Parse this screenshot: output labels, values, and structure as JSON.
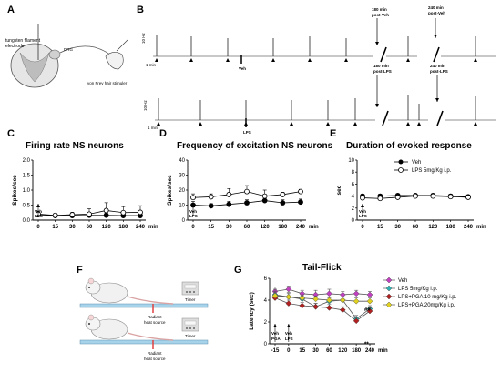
{
  "panels": {
    "A": {
      "letter": "A",
      "electrode_label_1": "tungsten filament",
      "electrode_label_2": "electrode",
      "drg": "DRG",
      "stimulator": "von Frey hair stimuler"
    },
    "B": {
      "letter": "B",
      "veh_label": "Veh",
      "lps_label": "LPS",
      "scale_time": "1 min",
      "scale_amp": "10 Hz",
      "ann_veh_180_1": "180 min",
      "ann_veh_180_2": "post-Veh",
      "ann_veh_240_1": "240 min",
      "ann_veh_240_2": "post-Veh",
      "ann_lps_180_1": "180 min",
      "ann_lps_180_2": "post-LPS",
      "ann_lps_240_1": "240 min",
      "ann_lps_240_2": "post-LPS"
    },
    "C": {
      "letter": "C",
      "title": "Firing rate NS neurons",
      "ylabel": "Spikes/sec",
      "arrow_1": "Veh",
      "arrow_2": "LPS"
    },
    "D": {
      "letter": "D",
      "title": "Frequency of excitation NS neurons",
      "ylabel": "Spikes/sec",
      "arrow_1": "Veh",
      "arrow_2": "LPS"
    },
    "E": {
      "letter": "E",
      "title": "Duration of evoked response",
      "ylabel": "sec",
      "arrow_1": "Veh",
      "arrow_2": "LPS",
      "legend": [
        "Veh",
        "LPS 5mg/Kg i.p."
      ]
    },
    "F": {
      "letter": "F",
      "source": [
        "Radiant",
        "heat source"
      ],
      "timer": "Timer"
    },
    "G": {
      "letter": "G",
      "title": "Tail-Flick",
      "ylabel": "Latency (sec)",
      "arrow_1": [
        "Veh",
        "PGA"
      ],
      "arrow_2": [
        "Veh",
        "LPS"
      ],
      "sig_1": "##",
      "sig_2": "**",
      "legend": [
        "Veh",
        "LPS 5mg/Kg i.p.",
        "LPS+PGA 10 mg/Kg i.p.",
        "LPS+PGA 20mg/Kg i.p."
      ]
    }
  },
  "chart_data": [
    {
      "id": "C",
      "type": "line",
      "title": "Firing rate NS neurons",
      "ylabel": "Spikes/sec",
      "xlabel": "min",
      "categories": [
        "0",
        "15",
        "30",
        "60",
        "120",
        "180",
        "240"
      ],
      "x_unit": "min",
      "ylim": [
        0,
        2
      ],
      "yticks": [
        0,
        0.5,
        1.0,
        1.5,
        2.0
      ],
      "series": [
        {
          "name": "Veh",
          "marker": "filled",
          "values": [
            0.18,
            0.15,
            0.15,
            0.16,
            0.16,
            0.15,
            0.15
          ],
          "errors": [
            0.08,
            0.06,
            0.05,
            0.1,
            0.08,
            0.12,
            0.1
          ]
        },
        {
          "name": "LPS 5mg/Kg i.p.",
          "marker": "open",
          "values": [
            0.2,
            0.16,
            0.18,
            0.2,
            0.32,
            0.25,
            0.26
          ],
          "errors": [
            0.1,
            0.06,
            0.08,
            0.18,
            0.26,
            0.2,
            0.22
          ]
        }
      ]
    },
    {
      "id": "D",
      "type": "line",
      "title": "Frequency of excitation NS neurons",
      "ylabel": "Spikes/sec",
      "xlabel": "min",
      "categories": [
        "0",
        "15",
        "30",
        "60",
        "120",
        "180",
        "240"
      ],
      "x_unit": "min",
      "ylim": [
        0,
        40
      ],
      "yticks": [
        0,
        10,
        20,
        30,
        40
      ],
      "series": [
        {
          "name": "Veh",
          "marker": "filled",
          "values": [
            10,
            9.5,
            10.5,
            11.5,
            13,
            11.5,
            12
          ],
          "errors": [
            2.5,
            1.5,
            2,
            2,
            3,
            2,
            2
          ]
        },
        {
          "name": "LPS 5mg/Kg i.p.",
          "marker": "open",
          "values": [
            15,
            15.5,
            17,
            19,
            16,
            17,
            19
          ],
          "errors": [
            2.5,
            2,
            4,
            4,
            4,
            1.5,
            1.5
          ]
        }
      ]
    },
    {
      "id": "E",
      "type": "line",
      "title": "Duration of evoked response",
      "ylabel": "sec",
      "xlabel": "min",
      "categories": [
        "0",
        "15",
        "30",
        "60",
        "120",
        "180",
        "240"
      ],
      "x_unit": "min",
      "ylim": [
        0,
        10
      ],
      "yticks": [
        0,
        2,
        4,
        6,
        8,
        10
      ],
      "legend_position": "top-right",
      "series": [
        {
          "name": "Veh",
          "marker": "filled",
          "values": [
            4,
            4,
            4.1,
            4.1,
            4.1,
            4.0,
            3.9
          ],
          "errors": [
            0.3,
            0.3,
            0.3,
            0.3,
            0.3,
            0.3,
            0.3
          ]
        },
        {
          "name": "LPS 5mg/Kg i.p.",
          "marker": "open",
          "values": [
            3.7,
            3.6,
            3.8,
            4.0,
            4.0,
            3.9,
            3.8
          ],
          "errors": [
            0.3,
            0.3,
            0.3,
            0.3,
            0.3,
            0.3,
            0.3
          ]
        }
      ]
    },
    {
      "id": "G",
      "type": "line",
      "title": "Tail-Flick",
      "ylabel": "Latency (sec)",
      "xlabel": "min",
      "categories": [
        "-15",
        "0",
        "15",
        "30",
        "60",
        "120",
        "180",
        "240"
      ],
      "x_unit": "min",
      "ylim": [
        0,
        6
      ],
      "yticks": [
        0,
        2,
        4,
        6
      ],
      "legend_position": "top-right",
      "series": [
        {
          "name": "Veh",
          "color": "#c040c0",
          "values": [
            4.8,
            5.0,
            4.6,
            4.5,
            4.6,
            4.5,
            4.6,
            4.5
          ],
          "errors": [
            0.4,
            0.3,
            0.3,
            0.4,
            0.4,
            0.3,
            0.3,
            0.3
          ]
        },
        {
          "name": "LPS 5mg/Kg i.p.",
          "color": "#30b0b0",
          "values": [
            4.5,
            4.3,
            4.1,
            3.4,
            3.9,
            4.0,
            2.3,
            3.2
          ],
          "errors": [
            0.5,
            0.4,
            0.3,
            0.3,
            0.3,
            0.3,
            0.3,
            0.3
          ]
        },
        {
          "name": "LPS+PGA 10 mg/Kg i.p.",
          "color": "#b02020",
          "values": [
            4.2,
            3.7,
            3.5,
            3.4,
            3.3,
            3.1,
            2.1,
            3.0
          ],
          "errors": [
            0.4,
            0.3,
            0.3,
            0.3,
            0.3,
            0.3,
            0.3,
            0.3
          ]
        },
        {
          "name": "LPS+PGA 20mg/Kg i.p.",
          "color": "#e0d020",
          "values": [
            4.4,
            4.3,
            4.2,
            4.1,
            4.0,
            4.0,
            3.9,
            3.9
          ],
          "errors": [
            0.4,
            0.3,
            0.3,
            0.3,
            0.3,
            0.3,
            0.3,
            0.3
          ]
        }
      ]
    }
  ]
}
